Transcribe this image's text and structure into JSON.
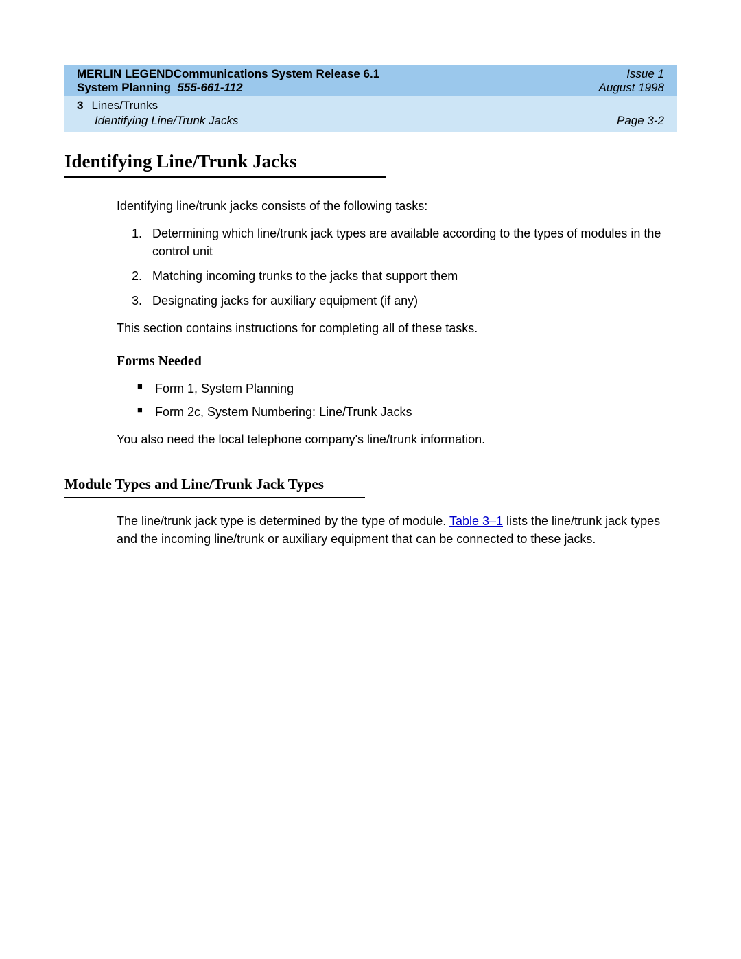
{
  "header": {
    "title_line1_a": "MERLIN LEGEND",
    "title_line1_b": "Communications System Release 6.1",
    "title_line2_a": "System Planning",
    "title_line2_b": "555-661-112",
    "issue": "Issue 1",
    "date": "August 1998",
    "chapter_num": "3",
    "chapter_title": "Lines/Trunks",
    "section": "Identifying Line/Trunk Jacks",
    "page": "Page 3-2",
    "colors": {
      "row1_bg": "#9bc8ec",
      "row2_bg": "#cde5f6"
    }
  },
  "main_heading": "Identifying Line/Trunk Jacks",
  "intro": "Identifying line/trunk jacks consists of the following tasks:",
  "tasks": [
    "Determining which line/trunk jack types are available according to the types of modules in the control unit",
    "Matching incoming trunks to the jacks that support them",
    "Designating jacks for auxiliary equipment (if any)"
  ],
  "after_tasks": "This section contains instructions for completing all of these tasks.",
  "forms_heading": "Forms Needed",
  "forms": [
    "Form 1, System Planning",
    "Form 2c, System Numbering: Line/Trunk Jacks"
  ],
  "forms_note": "You also need the local telephone company's line/trunk information.",
  "sub_heading": "Module Types and Line/Trunk Jack Types",
  "sub_para_a": "The line/trunk jack type is determined by the type of module. ",
  "sub_link": "Table 3–1",
  "sub_para_b": " lists the line/trunk jack types and the incoming line/trunk or auxiliary equipment that can be connected to these jacks.",
  "link_color": "#0000cc"
}
